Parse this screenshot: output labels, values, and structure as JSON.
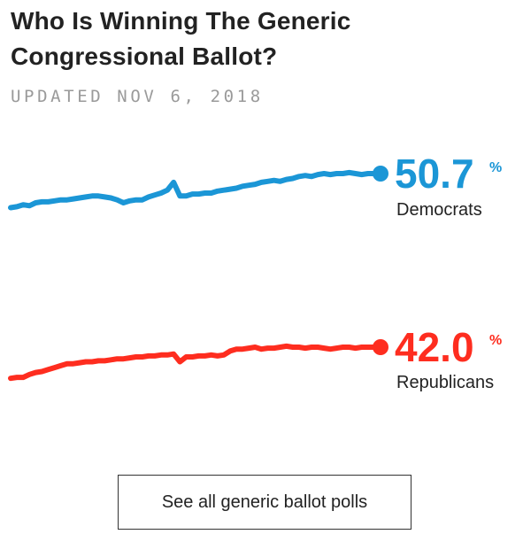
{
  "header": {
    "title": "Who Is Winning The Generic Congressional Ballot?",
    "updated": "UPDATED NOV 6, 2018"
  },
  "button": {
    "label": "See all generic ballot polls"
  },
  "colors": {
    "democrats": "#1b96d6",
    "republicans": "#fe2d1f"
  },
  "chart_data": {
    "type": "line",
    "title": "Who Is Winning The Generic Congressional Ballot?",
    "xlabel": "",
    "ylabel": "",
    "grid": false,
    "legend": "inline labels at line ends (right)",
    "x": [
      0,
      1,
      2,
      3,
      4,
      5,
      6,
      7,
      8,
      9,
      10,
      11,
      12,
      13,
      14,
      15,
      16,
      17,
      18,
      19,
      20,
      21,
      22,
      23,
      24,
      25,
      26,
      27,
      28,
      29,
      30,
      31,
      32,
      33,
      34,
      35,
      36,
      37,
      38,
      39,
      40,
      41,
      42,
      43,
      44,
      45,
      46,
      47,
      48,
      49,
      50,
      51,
      52,
      53,
      54,
      55,
      56,
      57,
      58,
      59
    ],
    "series": [
      {
        "name": "Democrats",
        "end_label": "50.7",
        "unit": "%",
        "values": [
          47.2,
          47.3,
          47.5,
          47.4,
          47.7,
          47.8,
          47.8,
          47.9,
          48.0,
          48.0,
          48.1,
          48.2,
          48.3,
          48.4,
          48.4,
          48.3,
          48.2,
          48.0,
          47.7,
          47.9,
          48.0,
          48.0,
          48.3,
          48.5,
          48.7,
          49.0,
          49.8,
          48.4,
          48.4,
          48.6,
          48.6,
          48.7,
          48.7,
          48.9,
          49.0,
          49.1,
          49.2,
          49.4,
          49.5,
          49.6,
          49.8,
          49.9,
          50.0,
          49.9,
          50.1,
          50.2,
          50.4,
          50.5,
          50.4,
          50.6,
          50.7,
          50.6,
          50.7,
          50.7,
          50.8,
          50.7,
          50.6,
          50.7,
          50.7,
          50.7
        ]
      },
      {
        "name": "Republicans",
        "end_label": "42.0",
        "unit": "%",
        "values": [
          38.8,
          38.9,
          38.9,
          39.2,
          39.4,
          39.5,
          39.7,
          39.9,
          40.1,
          40.3,
          40.3,
          40.4,
          40.5,
          40.5,
          40.6,
          40.6,
          40.7,
          40.8,
          40.8,
          40.9,
          41.0,
          41.0,
          41.1,
          41.1,
          41.2,
          41.2,
          41.3,
          40.5,
          41.0,
          41.0,
          41.1,
          41.1,
          41.2,
          41.1,
          41.2,
          41.6,
          41.8,
          41.8,
          41.9,
          42.0,
          41.8,
          41.9,
          41.9,
          42.0,
          42.1,
          42.0,
          42.0,
          41.9,
          42.0,
          42.0,
          41.9,
          41.8,
          41.9,
          42.0,
          42.0,
          41.9,
          42.0,
          42.0,
          42.0,
          42.0
        ]
      }
    ]
  }
}
